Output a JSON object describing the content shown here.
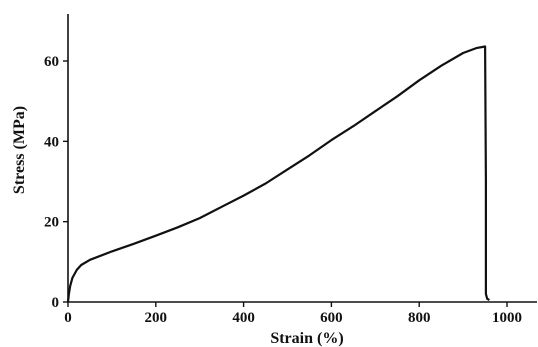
{
  "chart_data": {
    "type": "line",
    "title": "",
    "xlabel": "Strain (%)",
    "ylabel": "Stress (MPa)",
    "xlim": [
      0,
      1000
    ],
    "ylim": [
      0,
      70
    ],
    "xticks": [
      0,
      200,
      400,
      600,
      800,
      1000
    ],
    "yticks": [
      0,
      20,
      40,
      60
    ],
    "grid": false,
    "legend": "none",
    "line_color": "#111111",
    "series": [
      {
        "x": [
          0,
          2,
          5,
          10,
          20,
          30,
          50,
          100,
          150,
          200,
          250,
          300,
          350,
          400,
          450,
          500,
          550,
          600,
          650,
          700,
          750,
          800,
          850,
          900,
          930,
          950,
          952,
          952,
          955,
          960
        ],
        "y": [
          0,
          2,
          4,
          6,
          8,
          9.2,
          10.5,
          12.6,
          14.5,
          16.5,
          18.6,
          20.9,
          23.7,
          26.5,
          29.5,
          33,
          36.5,
          40.3,
          43.8,
          47.5,
          51.2,
          55.2,
          58.8,
          62,
          63.2,
          63.6,
          30,
          2,
          0.8,
          0.5
        ]
      }
    ]
  }
}
